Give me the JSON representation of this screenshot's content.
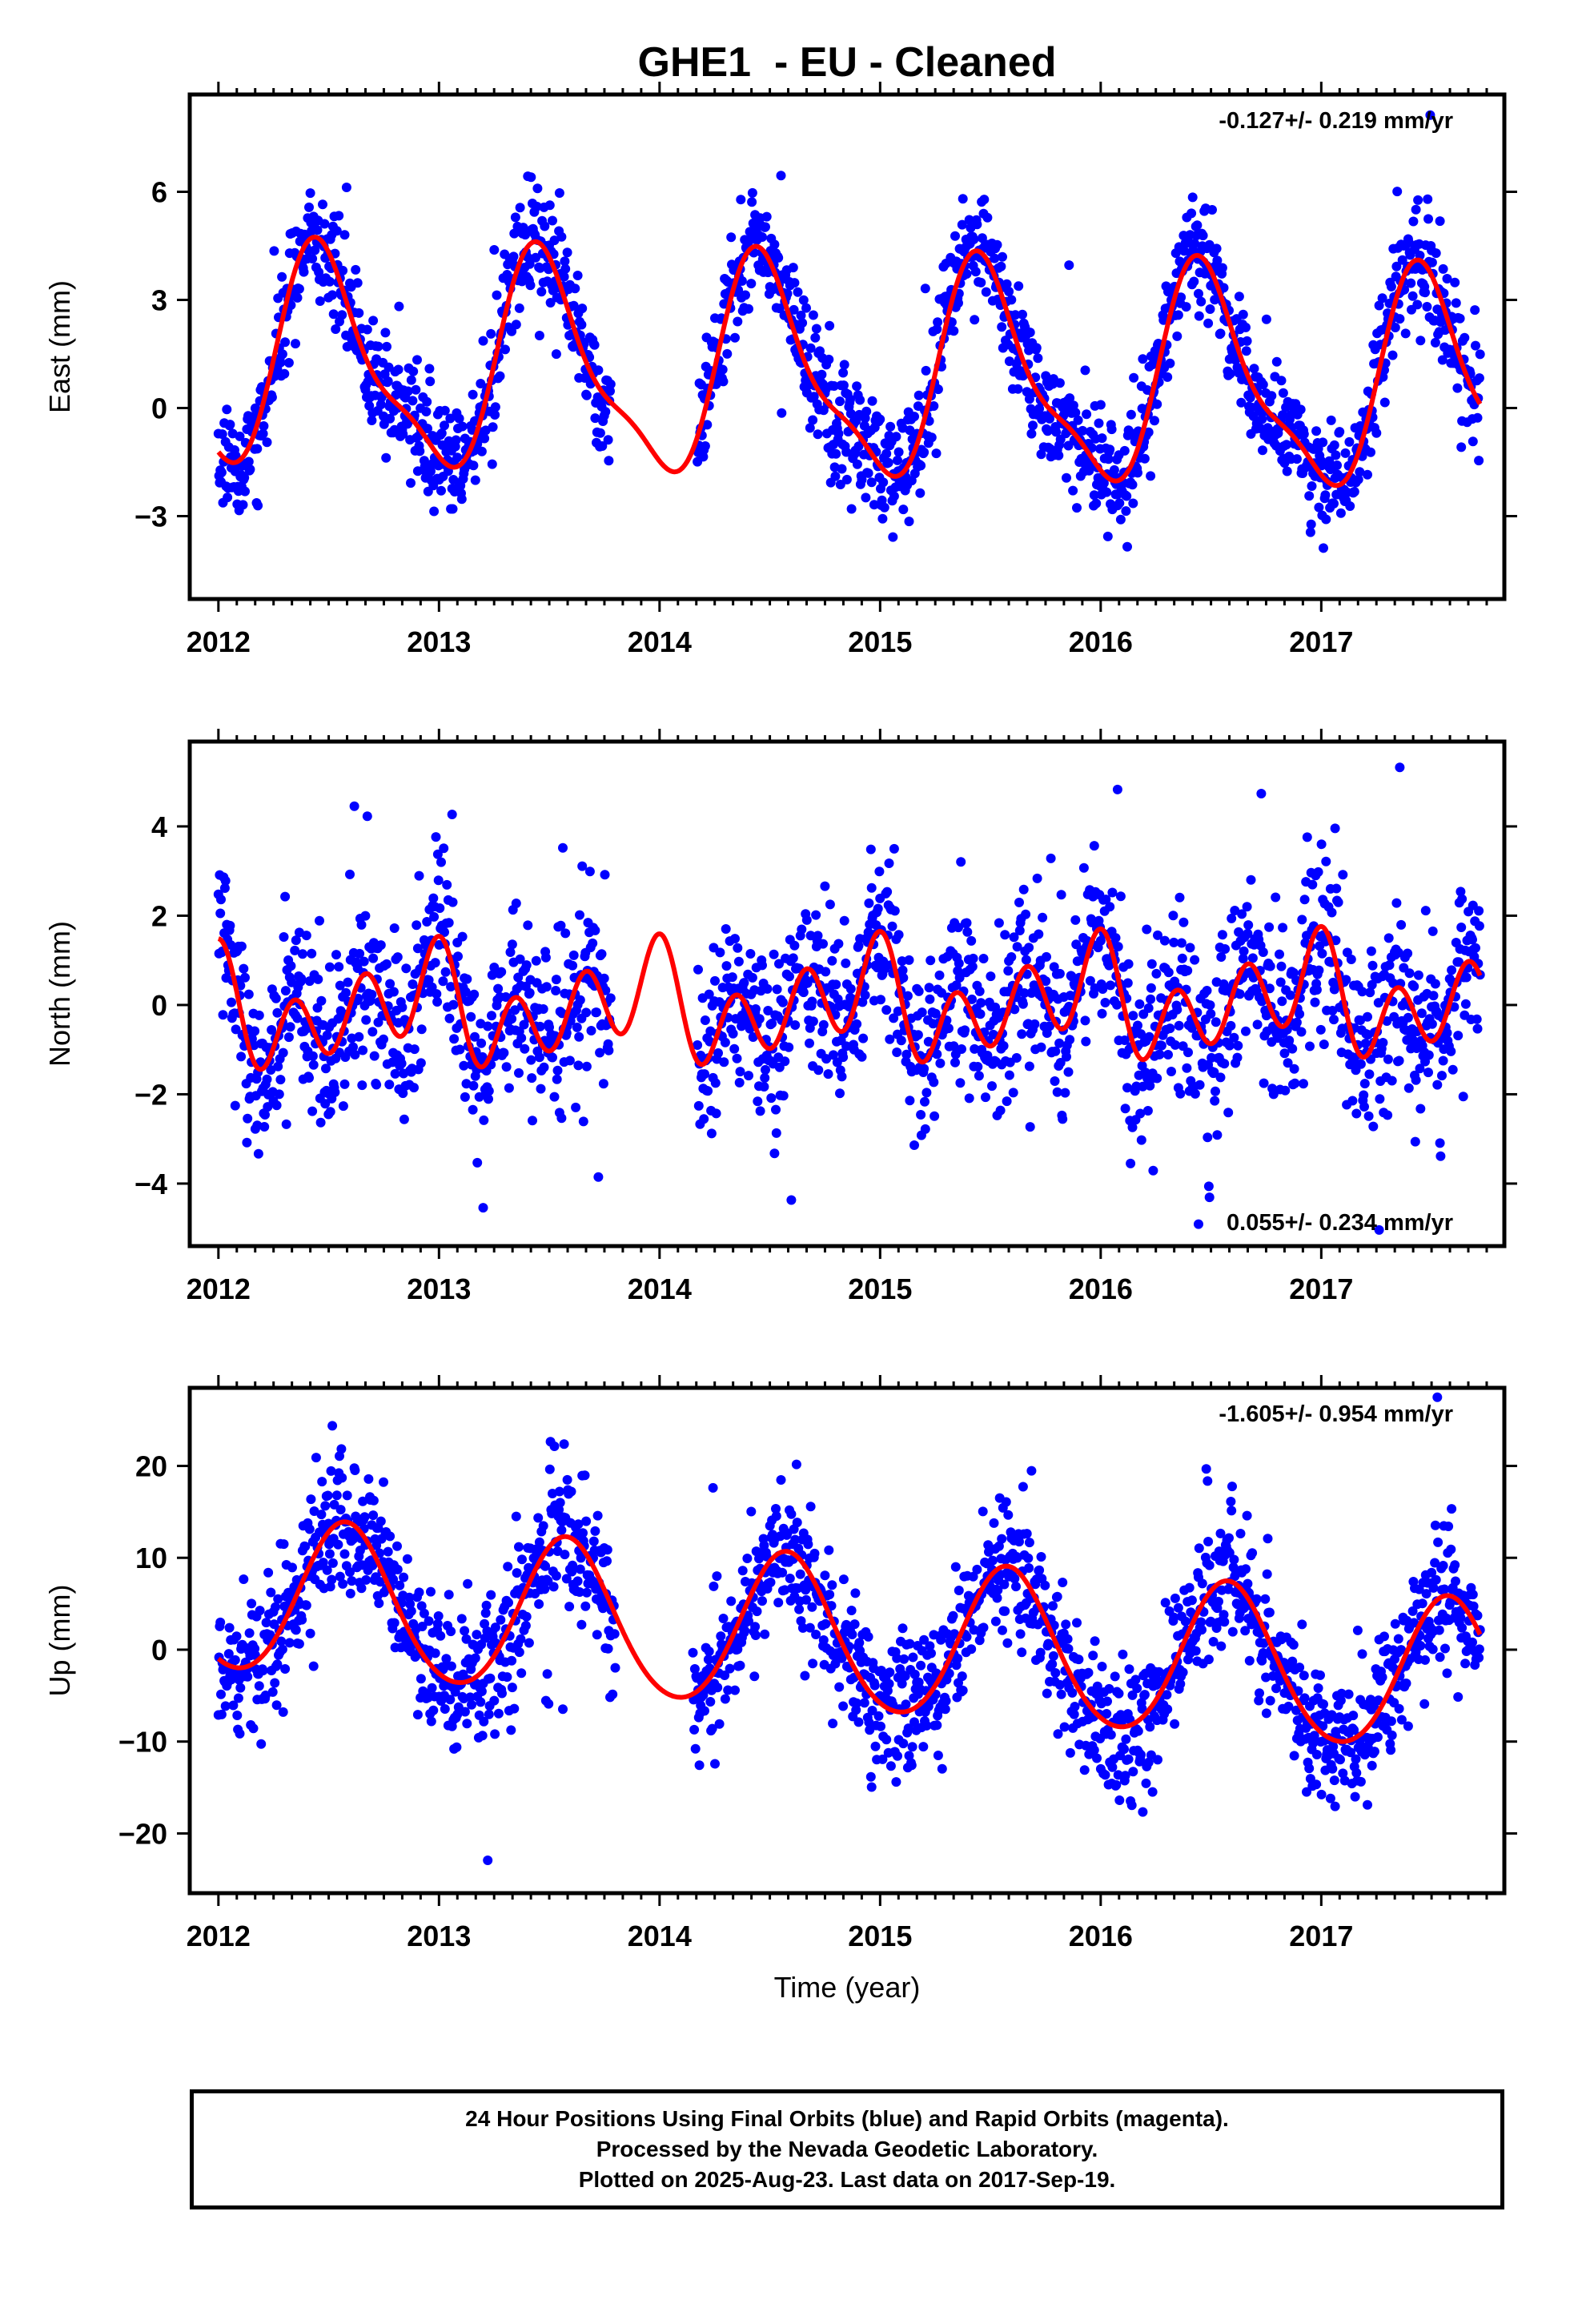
{
  "title": "GHE1  - EU - Cleaned",
  "colors": {
    "final_orbits": "#0000ff",
    "model_fit": "#ff0000",
    "axes": "#000000",
    "background": "#ffffff"
  },
  "chart_data": [
    {
      "type": "scatter",
      "component": "East",
      "ylabel": "East (mm)",
      "xlabel": "",
      "rate_label": "-0.127+/- 0.219 mm/yr",
      "rate_label_position": "top-right",
      "xlim": [
        2011.87,
        2017.83
      ],
      "ylim": [
        -5.3,
        8.7
      ],
      "yticks": [
        -3,
        0,
        3,
        6
      ],
      "ytick_labels": [
        "−3",
        "0",
        "3",
        "6"
      ],
      "xticks": [
        2012,
        2013,
        2014,
        2015,
        2016,
        2017
      ],
      "xtick_labels": [
        "2012",
        "2013",
        "2014",
        "2015",
        "2016",
        "2017"
      ],
      "grid": false,
      "observations": {
        "name": "Final Orbits",
        "color": "#0000ff",
        "x_start": 2012.0,
        "x_end": 2017.72,
        "gap": [
          2013.78,
          2014.17
        ],
        "n_points": 1950,
        "scatter_sd": 0.75,
        "tail_prob": 0.04
      },
      "fit": {
        "name": "Model",
        "color": "#ff0000",
        "offset": 0.9,
        "trend": -0.127,
        "t0": 2015.0,
        "annual": [
          -2.8,
          0.4
        ],
        "semiannual": [
          0.3,
          -0.8
        ],
        "terannual": [
          0.0,
          0.0
        ]
      }
    },
    {
      "type": "scatter",
      "component": "North",
      "ylabel": "North (mm)",
      "xlabel": "",
      "rate_label": "0.055+/- 0.234 mm/yr",
      "rate_label_position": "bottom-right",
      "xlim": [
        2011.87,
        2017.83
      ],
      "ylim": [
        -5.4,
        5.9
      ],
      "yticks": [
        -4,
        -2,
        0,
        2,
        4
      ],
      "ytick_labels": [
        "−4",
        "−2",
        "0",
        "2",
        "4"
      ],
      "xticks": [
        2012,
        2013,
        2014,
        2015,
        2016,
        2017
      ],
      "xtick_labels": [
        "2012",
        "2013",
        "2014",
        "2015",
        "2016",
        "2017"
      ],
      "grid": false,
      "observations": {
        "name": "Final Orbits",
        "color": "#0000ff",
        "x_start": 2012.0,
        "x_end": 2017.72,
        "gap": [
          2013.78,
          2014.17
        ],
        "n_points": 1950,
        "scatter_sd": 0.95,
        "tail_prob": 0.05
      },
      "fit": {
        "name": "Model",
        "color": "#ff0000",
        "offset": 0.0,
        "trend": 0.055,
        "t0": 2015.0,
        "annual": [
          0.4,
          -0.35
        ],
        "semiannual": [
          0.35,
          0.0
        ],
        "terannual": [
          0.9,
          0.1
        ]
      }
    },
    {
      "type": "scatter",
      "component": "Up",
      "ylabel": "Up (mm)",
      "xlabel": "Time (year)",
      "rate_label": "-1.605+/- 0.954 mm/yr",
      "rate_label_position": "top-right",
      "xlim": [
        2011.87,
        2017.83
      ],
      "ylim": [
        -26.5,
        28.5
      ],
      "yticks": [
        -20,
        -10,
        0,
        10,
        20
      ],
      "ytick_labels": [
        "−20",
        "−10",
        "0",
        "10",
        "20"
      ],
      "xticks": [
        2012,
        2013,
        2014,
        2015,
        2016,
        2017
      ],
      "xtick_labels": [
        "2012",
        "2013",
        "2014",
        "2015",
        "2016",
        "2017"
      ],
      "grid": false,
      "observations": {
        "name": "Final Orbits",
        "color": "#0000ff",
        "x_start": 2012.0,
        "x_end": 2017.72,
        "gap": [
          2013.8,
          2014.15
        ],
        "n_points": 1950,
        "scatter_sd": 3.6,
        "tail_prob": 0.05
      },
      "fit": {
        "name": "Model",
        "color": "#ff0000",
        "offset": 1.0,
        "trend": -1.605,
        "t0": 2015.0,
        "annual": [
          -7.3,
          -4.0
        ],
        "semiannual": [
          0.5,
          0.5
        ],
        "terannual": [
          0.0,
          0.0
        ]
      }
    }
  ],
  "footer": {
    "line1": "24 Hour Positions Using Final Orbits (blue) and Rapid Orbits (magenta).",
    "line2": "Processed by the Nevada Geodetic Laboratory.",
    "line3": "Plotted on 2025-Aug-23. Last data on 2017-Sep-19."
  }
}
